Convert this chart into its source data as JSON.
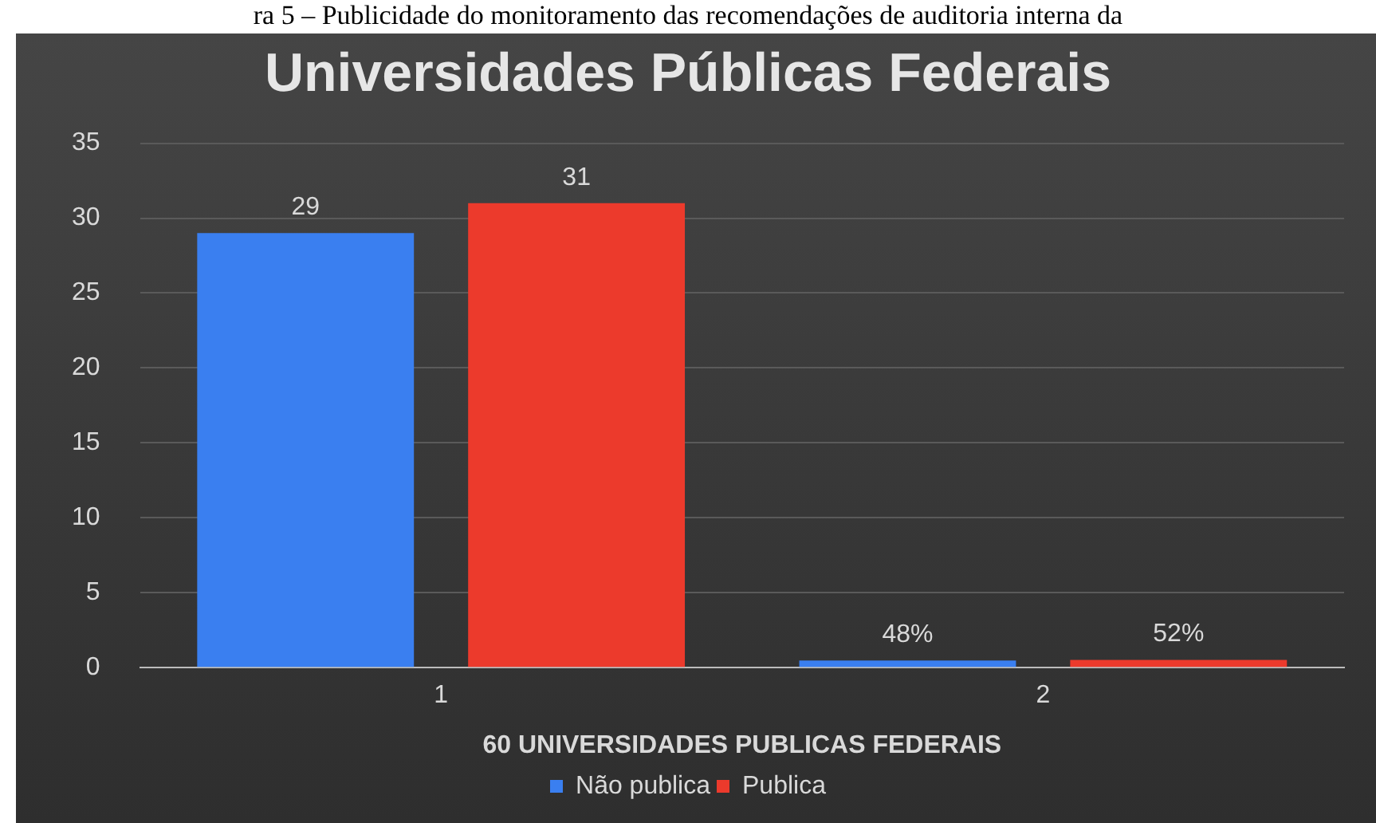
{
  "chart_data": {
    "type": "bar",
    "title": "Universidades Públicas Federais",
    "annotations": [
      "ra 5 – Publicidade do monitoramento das recomendações de auditoria interna da"
    ],
    "xlabel": "60 UNIVERSIDADES PUBLICAS FEDERAIS",
    "categories": [
      "1",
      "2"
    ],
    "series": [
      {
        "name": "Não publica",
        "color": "#3a7ff0",
        "values": [
          29,
          0.48
        ],
        "value_labels": [
          "29",
          "48%"
        ]
      },
      {
        "name": "Publica",
        "color": "#ec3a2c",
        "values": [
          31,
          0.52
        ],
        "value_labels": [
          "31",
          "52%"
        ]
      }
    ],
    "ylim": [
      0,
      35
    ],
    "yticks": [
      0,
      5,
      10,
      15,
      20,
      25,
      30,
      35
    ],
    "grid": "y",
    "legend": "bottom"
  }
}
